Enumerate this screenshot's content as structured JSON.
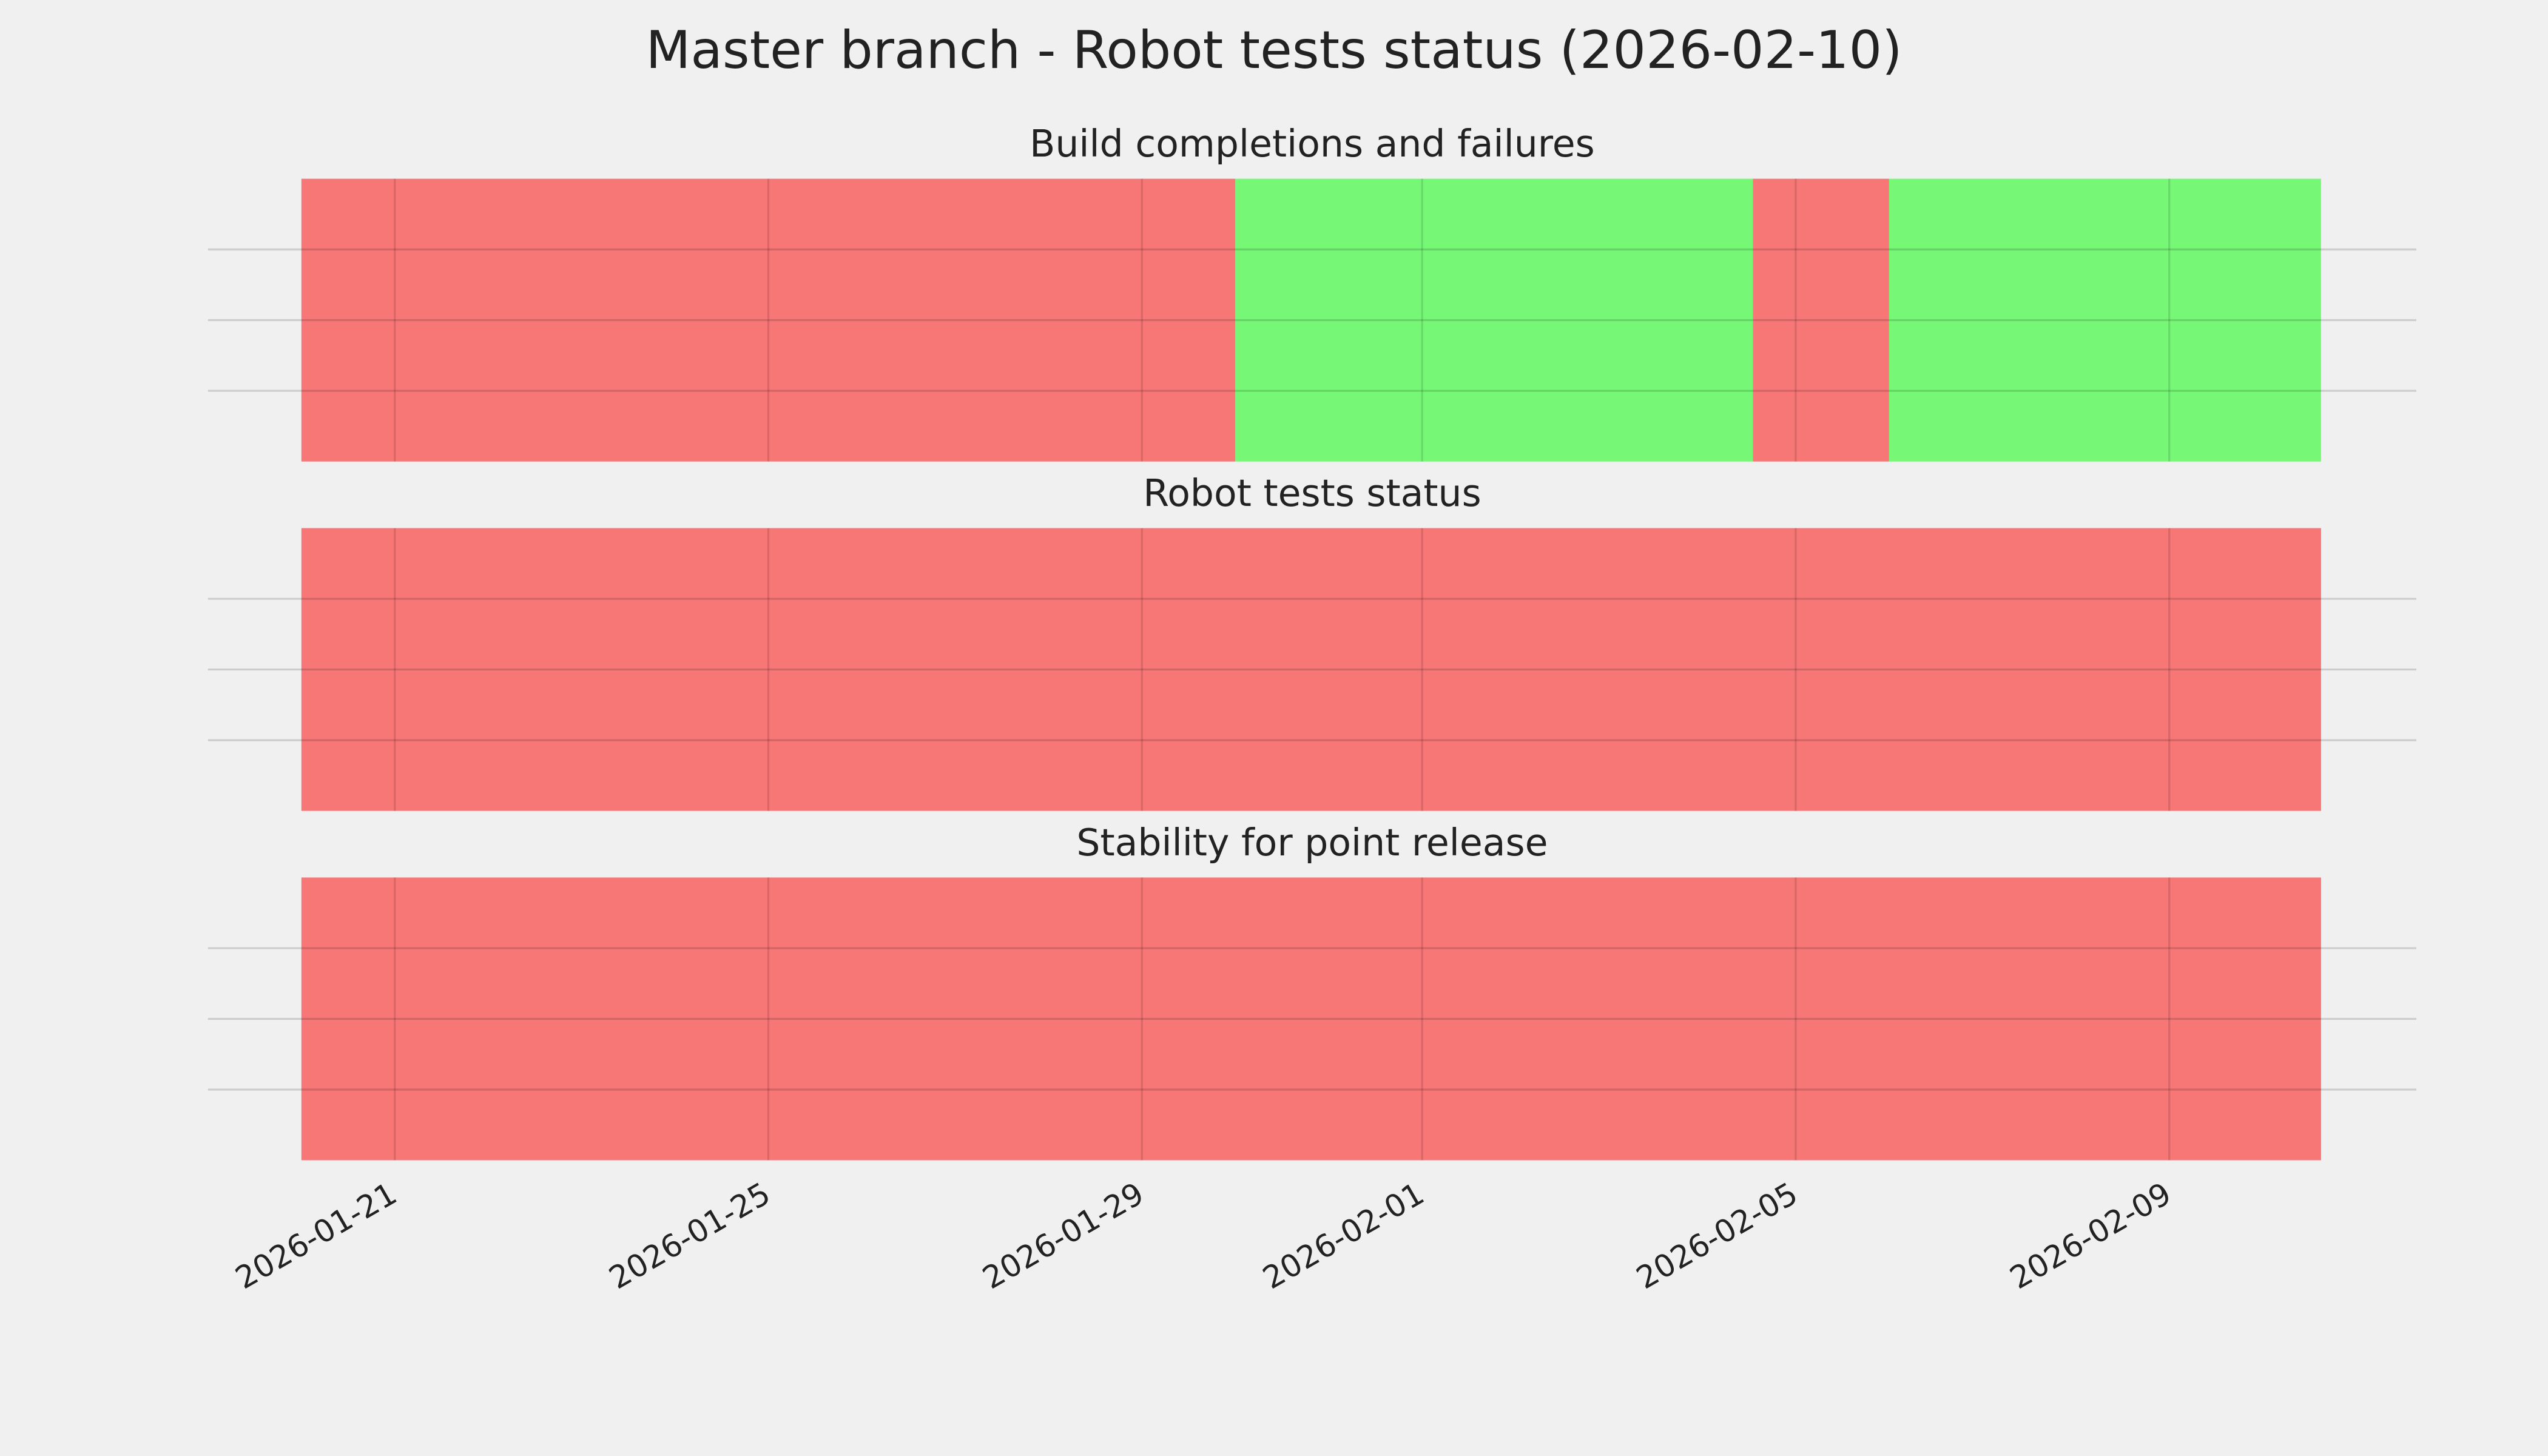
{
  "title": "Master branch - Robot tests status (2026-02-10)",
  "chart_data": [
    {
      "type": "timeline",
      "title": "Build completions and failures",
      "xlim": [
        "2026-01-19",
        "2026-02-11T15:30"
      ],
      "xticks": [
        "2026-01-21",
        "2026-01-25",
        "2026-01-29",
        "2026-02-01",
        "2026-02-05",
        "2026-02-09"
      ],
      "ylim": [
        0,
        1
      ],
      "yticks": [
        {
          "value": 0.25,
          "label": null
        },
        {
          "value": 0.5,
          "label": null
        },
        {
          "value": 0.75,
          "label": null
        }
      ],
      "grid": true,
      "segments": [
        {
          "start": "2026-01-20",
          "end": "2026-01-30",
          "color": "#f77676"
        },
        {
          "start": "2026-01-30",
          "end": "2026-02-04T13:00",
          "color": "#76f876"
        },
        {
          "start": "2026-02-04T13:00",
          "end": "2026-02-06",
          "color": "#f77676"
        },
        {
          "start": "2026-02-06",
          "end": "2026-02-10T15:00",
          "color": "#76f876"
        }
      ]
    },
    {
      "type": "timeline",
      "title": "Robot tests status",
      "xlim": [
        "2026-01-19",
        "2026-02-11T15:30"
      ],
      "xticks": [
        "2026-01-21",
        "2026-01-25",
        "2026-01-29",
        "2026-02-01",
        "2026-02-05",
        "2026-02-09"
      ],
      "ylim": [
        0,
        1
      ],
      "yticks": [
        {
          "value": 0.25,
          "label": null
        },
        {
          "value": 0.5,
          "label": null
        },
        {
          "value": 0.75,
          "label": null
        }
      ],
      "grid": true,
      "segments": [
        {
          "start": "2026-01-20",
          "end": "2026-02-10T15:00",
          "color": "#f77676"
        }
      ]
    },
    {
      "type": "timeline",
      "title": "Stability for point release",
      "xlim": [
        "2026-01-19",
        "2026-02-11T15:30"
      ],
      "xticks": [
        "2026-01-21",
        "2026-01-25",
        "2026-01-29",
        "2026-02-01",
        "2026-02-05",
        "2026-02-09"
      ],
      "ylim": [
        0,
        1
      ],
      "yticks": [
        {
          "value": 0.25,
          "label": null
        },
        {
          "value": 0.5,
          "label": null
        },
        {
          "value": 0.75,
          "label": null
        }
      ],
      "grid": true,
      "show_xtick_labels": true,
      "segments": [
        {
          "start": "2026-01-20",
          "end": "2026-02-10T15:00",
          "color": "#f77676"
        }
      ]
    }
  ]
}
